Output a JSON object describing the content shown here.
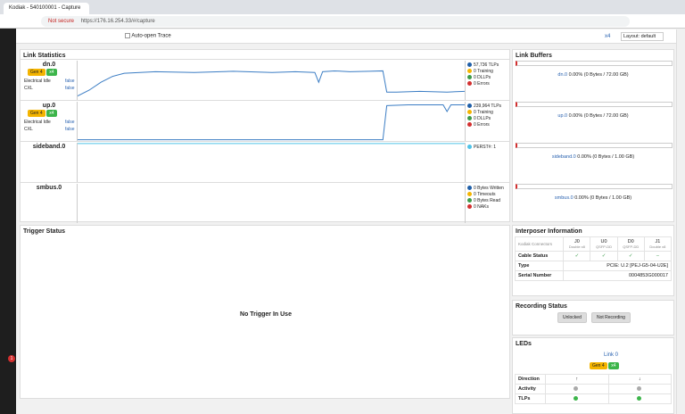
{
  "browser": {
    "tab_title": "Kodiak - 540100001 - Capture",
    "security": "Not secure",
    "url": "https://176.16.254.33/#/capture"
  },
  "toolbar": {
    "auto_open_trace": "Auto-open Trace",
    "link": "x4",
    "layout": "Layout: default"
  },
  "notification_count": "1",
  "link_statistics": {
    "title": "Link Statistics",
    "rows": [
      {
        "name": "dn.0",
        "gen": "Gen 4",
        "width": "x4",
        "fields": [
          [
            "Electrical Idle",
            "false"
          ],
          [
            "CXL",
            "false"
          ]
        ],
        "legend": [
          "57,736 TLPs",
          "0 Training",
          "0 DLLPs",
          "0 Errors"
        ],
        "trace": {
          "color": "#3b7dc4",
          "x": [
            0,
            3,
            6,
            9,
            12,
            20,
            30,
            40,
            50,
            56,
            61,
            62,
            63,
            66,
            70,
            75,
            78.5,
            79.5,
            82,
            88,
            95,
            100
          ],
          "values": [
            10,
            25,
            45,
            60,
            68,
            72,
            70,
            73,
            70,
            72,
            70,
            45,
            72,
            74,
            72,
            73,
            74,
            20,
            20,
            22,
            20,
            22
          ]
        }
      },
      {
        "name": "up.0",
        "gen": "Gen 4",
        "width": "x4",
        "fields": [
          [
            "Electrical Idle",
            "false"
          ],
          [
            "CXL",
            "false"
          ]
        ],
        "legend": [
          "239,964 TLPs",
          "0 Training",
          "0 DLLPs",
          "0 Errors"
        ],
        "trace": {
          "color": "#3b7dc4",
          "x": [
            0,
            40,
            78.5,
            79.5,
            85,
            94,
            95,
            96,
            100
          ],
          "values": [
            3,
            3,
            3,
            90,
            92,
            92,
            75,
            92,
            92
          ]
        }
      },
      {
        "name": "sideband.0",
        "legend": [
          "PERST#: 1"
        ],
        "trace": {
          "color": "#4fc3e8",
          "x": [
            0,
            100
          ],
          "values": [
            98,
            98
          ]
        }
      },
      {
        "name": "smbus.0",
        "legend": [
          "0 Bytes Written",
          "0 Timeouts",
          "0 Bytes Read",
          "0 NAKs"
        ]
      }
    ]
  },
  "link_buffers": {
    "title": "Link Buffers",
    "items": [
      {
        "name": "dn.0",
        "text": "0.00% (0 Bytes / 72.00 GB)"
      },
      {
        "name": "up.0",
        "text": "0.00% (0 Bytes / 72.00 GB)"
      },
      {
        "name": "sideband.0",
        "text": "0.00% (0 Bytes / 1.00 GB)"
      },
      {
        "name": "smbus.0",
        "text": "0.00% (0 Bytes / 1.00 GB)"
      }
    ]
  },
  "trigger_status": {
    "title": "Trigger Status",
    "message": "No Trigger In Use"
  },
  "interposer": {
    "title": "Interposer Information",
    "corner": "Kodiak Connectors",
    "columns": [
      [
        "J0",
        "Double x8"
      ],
      [
        "U0",
        "QSFP-DD"
      ],
      [
        "D0",
        "QSFP-DD"
      ],
      [
        "J1",
        "Double x8"
      ]
    ],
    "cable_status": {
      "label": "Cable Status",
      "values": [
        "✓",
        "✓",
        "✓",
        "–"
      ]
    },
    "type": {
      "label": "Type",
      "value": "PCIE: U.2 [PEJ-G5-04-U2E]"
    },
    "serial": {
      "label": "Serial Number",
      "value": "0004853G000017"
    }
  },
  "recording": {
    "title": "Recording Status",
    "lock": "Unlocked",
    "state": "Not Recording"
  },
  "leds": {
    "title": "LEDs",
    "link": "Link 0",
    "gen": "Gen 4",
    "width": "x4",
    "rows": [
      [
        "Direction",
        "↑",
        "↓"
      ],
      [
        "Activity"
      ],
      [
        "TLPs"
      ]
    ]
  }
}
